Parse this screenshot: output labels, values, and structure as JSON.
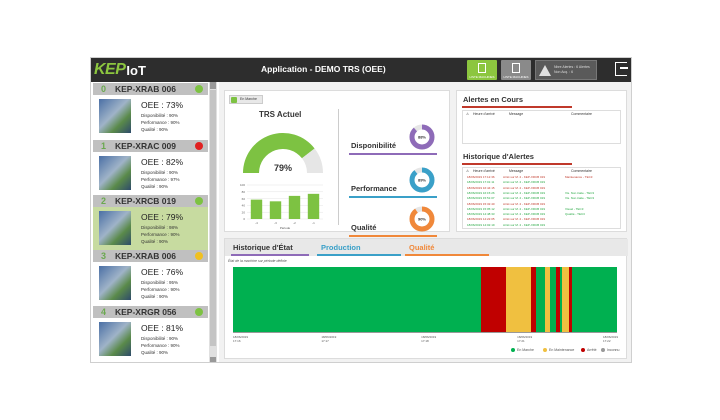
{
  "header": {
    "logo_kep": "KEP",
    "logo_iot": "IoT",
    "title": "Application - DEMO TRS (OEE)",
    "btn1_caption": "LISTE MACHINES",
    "btn2_caption": "LISTE MACHINES",
    "alert_text": "Nbre Alertes : 6 Alertes Non Acq. : 6"
  },
  "machines": [
    {
      "num": "0",
      "name": "KEP-XRAB 006",
      "status_color": "#7dc242",
      "oee": "OEE : 73%",
      "dispo": "Disponibilité : 90%",
      "perf": "Performance : 90%",
      "qual": "Qualité : 90%"
    },
    {
      "num": "1",
      "name": "KEP-XRAC 009",
      "status_color": "#e02020",
      "oee": "OEE : 82%",
      "dispo": "Disponibilité : 90%",
      "perf": "Performance : 97%",
      "qual": "Qualité : 90%"
    },
    {
      "num": "2",
      "name": "KEP-XRCB 019",
      "status_color": "#7dc242",
      "oee": "OEE : 79%",
      "dispo": "Disponibilité : 98%",
      "perf": "Performance : 90%",
      "qual": "Qualité : 90%"
    },
    {
      "num": "3",
      "name": "KEP-XRAB 006",
      "status_color": "#f0c020",
      "oee": "OEE : 76%",
      "dispo": "Disponibilité : 95%",
      "perf": "Performance : 90%",
      "qual": "Qualité : 90%"
    },
    {
      "num": "4",
      "name": "KEP-XRGR 056",
      "status_color": "#7dc242",
      "oee": "OEE : 81%",
      "dispo": "Disponibilité : 90%",
      "perf": "Performance : 90%",
      "qual": "Qualité : 90%"
    }
  ],
  "trs": {
    "state": "En Marche",
    "title": "TRS Actuel",
    "value": 79,
    "value_label": "79%",
    "bar_xlabel": "Période",
    "kpis": [
      {
        "label": "Disponibilité",
        "value": 88,
        "value_label": "88%",
        "color": "#8e6bb8"
      },
      {
        "label": "Performance",
        "value": 89,
        "value_label": "89%",
        "color": "#3aa0c8"
      },
      {
        "label": "Qualité",
        "value": 90,
        "value_label": "90%",
        "color": "#f0883a"
      }
    ]
  },
  "chart_data": {
    "type": "bar",
    "categories": [
      "-4",
      "-3",
      "-2",
      "-1"
    ],
    "values": [
      57,
      52,
      68,
      74
    ],
    "ylim": [
      0,
      100
    ],
    "yticks": [
      "100",
      "80",
      "60",
      "40",
      "20",
      "0"
    ],
    "xlabel": "Période",
    "color": "#7dc242"
  },
  "alerts": {
    "title": "Alertes en Cours",
    "cols": [
      "Heure d'arrivé",
      "Message",
      "Commentaire"
    ],
    "history_title": "Historique d'Alertes",
    "history_rows": [
      {
        "time": "18/06/2019 17:12:36",
        "msg": "Arrêt sur M. 2 - KEP-XRCB 019",
        "comment": "Maintenance - TEC3",
        "color": "#c0392b"
      },
      {
        "time": "18/06/2019 17:01:11",
        "msg": "Arrêt sur M. 2 - KEP-XRCB 019",
        "comment": "",
        "color": "#27a844"
      },
      {
        "time": "18/06/2019 16:44:15",
        "msg": "Arrêt sur M. 2 - KEP-XRCB 019",
        "comment": "",
        "color": "#c0392b"
      },
      {
        "time": "18/06/2019 16:15:26",
        "msg": "Arrêt sur M. 2 - KEP-XRCB 019",
        "comment": "Vis. Non traite - TEC3",
        "color": "#27a844"
      },
      {
        "time": "18/06/2019 15:51:07",
        "msg": "Arrêt sur M. 2 - KEP-XRCB 019",
        "comment": "Vis. Non traite - TEC3",
        "color": "#27a844"
      },
      {
        "time": "18/06/2019 15:32:40",
        "msg": "Arrêt sur M. 2 - KEP-XRCB 019",
        "comment": "",
        "color": "#c0392b"
      },
      {
        "time": "18/06/2019 15:05:12",
        "msg": "Arrêt sur M. 2 - KEP-XRCB 019",
        "comment": "Visuel - TEC3",
        "color": "#27a844"
      },
      {
        "time": "18/06/2019 14:48:33",
        "msg": "Arrêt sur M. 2 - KEP-XRCB 019",
        "comment": "Qualité - TEC3",
        "color": "#27a844"
      },
      {
        "time": "18/06/2019 14:22:05",
        "msg": "Arrêt sur M. 2 - KEP-XRCB 019",
        "comment": "",
        "color": "#c0392b"
      },
      {
        "time": "18/06/2019 14:02:19",
        "msg": "Arrêt sur M. 2 - KEP-XRCB 019",
        "comment": "",
        "color": "#27a844"
      }
    ]
  },
  "history": {
    "tabs": [
      "Historique d'État",
      "Production",
      "Qualité"
    ],
    "subtitle": "État de la machine sur période définie",
    "segments": [
      {
        "start": 0.646,
        "end": 0.712,
        "color": "#c00000"
      },
      {
        "start": 0.712,
        "end": 0.775,
        "color": "#f0c040"
      },
      {
        "start": 0.775,
        "end": 0.79,
        "color": "#c00000"
      },
      {
        "start": 0.812,
        "end": 0.826,
        "color": "#f0c040"
      },
      {
        "start": 0.842,
        "end": 0.852,
        "color": "#c00000"
      },
      {
        "start": 0.857,
        "end": 0.882,
        "color": "#f0c040"
      },
      {
        "start": 0.875,
        "end": 0.882,
        "color": "#c00000"
      }
    ],
    "ticks": [
      {
        "date": "18/06/2019",
        "time": "17:16"
      },
      {
        "date": "18/06/2019",
        "time": "17:17"
      },
      {
        "date": "18/06/2019",
        "time": "17:18"
      },
      {
        "date": "18/06/2019",
        "time": "17:21"
      },
      {
        "date": "18/06/2019",
        "time": "17:22"
      }
    ],
    "legend": [
      {
        "label": "En Marche",
        "color": "#00b050"
      },
      {
        "label": "En Maintenance",
        "color": "#f0c040"
      },
      {
        "label": "Arrêté",
        "color": "#c00000"
      },
      {
        "label": "Inconnu",
        "color": "#999999"
      }
    ]
  }
}
